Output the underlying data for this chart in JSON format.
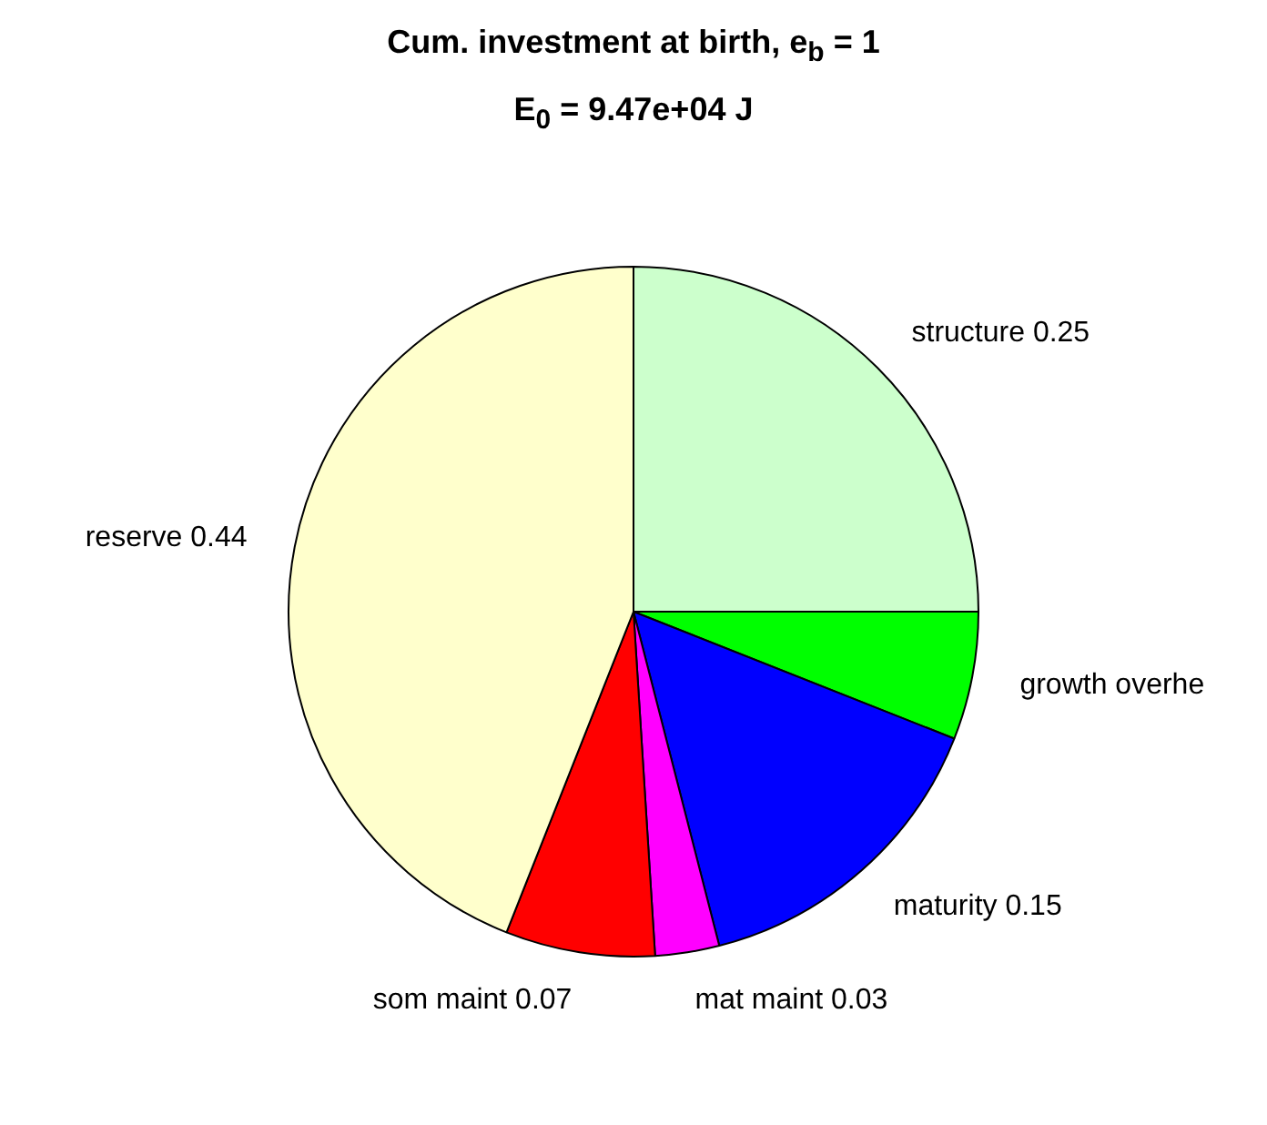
{
  "chart_data": {
    "type": "pie",
    "title": "Cum. investment at birth, e$_{b}$ = 1",
    "subtitle": "E$_{0}$ = 9.47e+04 J",
    "categories": [
      "structure",
      "growth overhe",
      "maturity",
      "mat maint",
      "som maint",
      "reserve"
    ],
    "values": [
      0.25,
      0.06,
      0.15,
      0.03,
      0.07,
      0.44
    ],
    "value_labels": [
      "0.25",
      null,
      "0.15",
      "0.03",
      "0.07",
      "0.44"
    ],
    "colors": [
      "#ccffcc",
      "#00ff00",
      "#0000ff",
      "#ff00ff",
      "#ff0000",
      "#ffffcc"
    ],
    "legend": false
  }
}
